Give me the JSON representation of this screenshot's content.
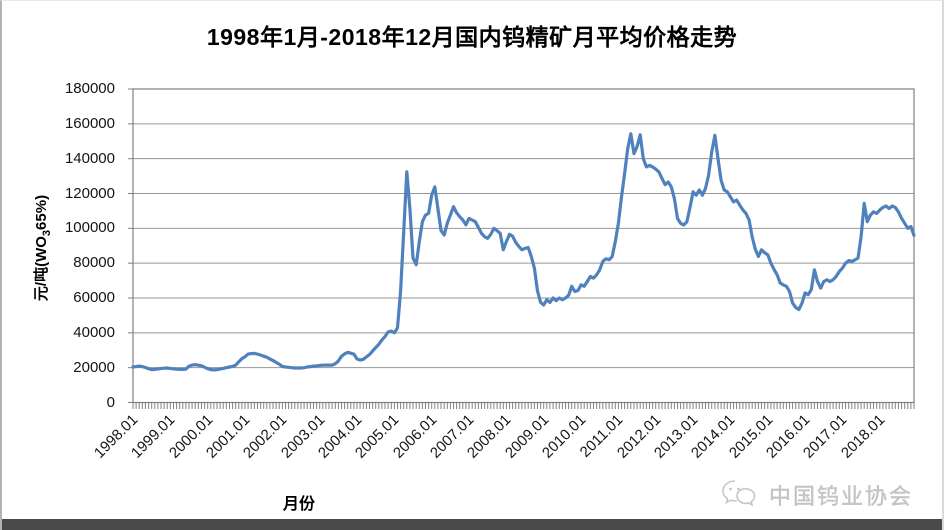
{
  "chart_data": {
    "type": "line",
    "title": "1998年1月-2018年12月国内钨精矿月平均价格走势",
    "xlabel": "月份",
    "ylabel": "元/吨(WO3 65%)",
    "ylabel_parts": {
      "prefix": "元/吨(WO",
      "sub": "3",
      "suffix": "65%)"
    },
    "x_start": "1998.01",
    "x_end": "2018.12",
    "x_tick_labels": [
      "1998.01",
      "1999.01",
      "2000.01",
      "2001.01",
      "2002.01",
      "2003.01",
      "2004.01",
      "2005.01",
      "2006.01",
      "2007.01",
      "2008.01",
      "2009.01",
      "2010.01",
      "2011.01",
      "2012.01",
      "2013.01",
      "2014.01",
      "2015.01",
      "2016.01",
      "2017.01",
      "2018.01"
    ],
    "y_ticks": [
      0,
      20000,
      40000,
      60000,
      80000,
      100000,
      120000,
      140000,
      160000,
      180000
    ],
    "ylim": [
      0,
      180000
    ],
    "grid": true,
    "legend": "none",
    "line_color": "#4f81bd",
    "grid_color": "#969696",
    "axis_color": "#808080",
    "values": [
      20400,
      20600,
      20900,
      20600,
      20100,
      19400,
      18900,
      19000,
      19300,
      19500,
      19700,
      19800,
      19600,
      19300,
      19100,
      19000,
      19000,
      19200,
      20900,
      21500,
      21700,
      21400,
      21100,
      20200,
      19400,
      18900,
      18700,
      18900,
      19200,
      19600,
      20000,
      20400,
      20700,
      21500,
      23400,
      25200,
      26300,
      27800,
      28100,
      28200,
      27800,
      27300,
      26600,
      26000,
      25000,
      24100,
      23000,
      22000,
      20700,
      20400,
      20200,
      20000,
      19800,
      19800,
      19800,
      20000,
      20400,
      20600,
      20900,
      21100,
      21300,
      21400,
      21500,
      21500,
      21500,
      22300,
      23900,
      26500,
      27900,
      28800,
      28300,
      27800,
      25000,
      24400,
      24800,
      26200,
      27500,
      29500,
      31500,
      33400,
      35800,
      37900,
      40500,
      41000,
      40000,
      42900,
      64000,
      98000,
      132400,
      111400,
      82900,
      79100,
      92400,
      103800,
      107600,
      108600,
      119100,
      123800,
      111400,
      98800,
      96200,
      103000,
      107600,
      112400,
      109000,
      106700,
      104800,
      102000,
      105700,
      104800,
      103800,
      100500,
      97100,
      95200,
      94300,
      96600,
      100000,
      98600,
      97100,
      87700,
      92400,
      96600,
      95500,
      92000,
      89600,
      87700,
      88500,
      89000,
      83800,
      77100,
      64000,
      57500,
      56000,
      59000,
      57500,
      60000,
      58500,
      60000,
      59000,
      60000,
      61500,
      66700,
      63800,
      64300,
      67600,
      66700,
      69500,
      72400,
      71400,
      73300,
      76200,
      81000,
      82500,
      82000,
      83800,
      92400,
      103000,
      118000,
      131400,
      145700,
      154300,
      142900,
      147000,
      153700,
      140000,
      135300,
      136200,
      135300,
      134000,
      132400,
      128600,
      125100,
      126600,
      123800,
      117100,
      105700,
      102900,
      101900,
      103800,
      112000,
      121000,
      119000,
      122000,
      119000,
      122900,
      130500,
      143800,
      153400,
      140000,
      127600,
      122000,
      121000,
      118100,
      115200,
      116200,
      113300,
      110500,
      108600,
      104800,
      95000,
      88000,
      83800,
      87700,
      86000,
      84800,
      80000,
      76500,
      73300,
      68600,
      67500,
      66700,
      63800,
      57100,
      54500,
      53400,
      57100,
      62900,
      61900,
      64800,
      76200,
      69500,
      65700,
      69500,
      70500,
      69500,
      70500,
      72400,
      75200,
      77100,
      80000,
      81500,
      81000,
      81900,
      82900,
      95200,
      114300,
      103800,
      107600,
      109500,
      108600,
      110500,
      112000,
      112800,
      111400,
      112800,
      112000,
      109500,
      105700,
      102900,
      100000,
      101000,
      96000
    ]
  },
  "watermark": {
    "text": "中国钨业协会",
    "logo": "wechat-logo-icon",
    "color": "#c6c6c6"
  }
}
